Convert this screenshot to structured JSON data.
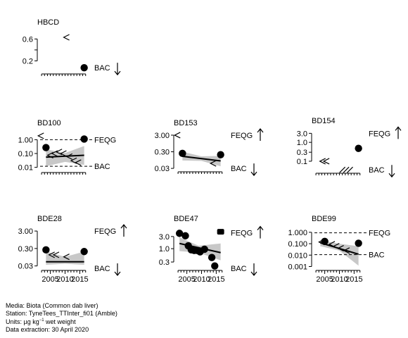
{
  "footer": {
    "media": "Media: Biota (Common dab liver)",
    "station": "Station: TyneTees_TTInter_fi01 (Amble)",
    "units_prefix": "Units:  µg kg",
    "units_sup": "−1",
    "units_suffix": " wet weight",
    "extraction": "Data extraction: 30 April 2020"
  },
  "chart_data": [
    {
      "type": "scatter",
      "title": "HBCD",
      "yscale": "linear",
      "ylim": [
        0,
        0.72
      ],
      "yticks": [
        0.2,
        0.4,
        0.6
      ],
      "ytick_labels": [
        "0.2",
        "",
        "0.6"
      ],
      "xlim": [
        2001.5,
        2018.5
      ],
      "points": [
        {
          "x": 2016.5,
          "y": 0.075,
          "type": "measured"
        }
      ],
      "less_than": [
        {
          "x": 2010.5,
          "y": 0.63
        }
      ],
      "refs": [
        {
          "label": "BAC",
          "y": 0.075,
          "arrow": "down"
        }
      ]
    },
    {
      "type": "scatter",
      "title": "BD100",
      "yscale": "log",
      "ylim": [
        0.006,
        3.0
      ],
      "yticks": [
        0.01,
        0.1,
        1.0
      ],
      "ytick_labels": [
        "0.01",
        "0.10",
        "1.00"
      ],
      "xlim": [
        2001.5,
        2018.5
      ],
      "points": [
        {
          "x": 2003.5,
          "y": 0.27,
          "type": "measured"
        },
        {
          "x": 2016.5,
          "y": 1.12,
          "type": "measured"
        }
      ],
      "less_than": [
        {
          "x": 2001.8,
          "y": 1.9
        },
        {
          "x": 2005,
          "y": 0.075
        },
        {
          "x": 2006.5,
          "y": 0.1
        },
        {
          "x": 2008,
          "y": 0.13
        },
        {
          "x": 2009.5,
          "y": 0.1
        },
        {
          "x": 2011.5,
          "y": 0.06
        },
        {
          "x": 2013,
          "y": 0.03
        },
        {
          "x": 2014.5,
          "y": 0.022
        }
      ],
      "trend": [
        {
          "x": 2003.5,
          "y": 0.055
        },
        {
          "x": 2016.5,
          "y": 0.075
        }
      ],
      "band": {
        "upper": [
          {
            "x": 2003.5,
            "y": 0.2
          },
          {
            "x": 2010,
            "y": 0.11
          },
          {
            "x": 2016.5,
            "y": 0.35
          }
        ],
        "lower": [
          {
            "x": 2003.5,
            "y": 0.012
          },
          {
            "x": 2010,
            "y": 0.025
          },
          {
            "x": 2016.5,
            "y": 0.015
          }
        ]
      },
      "refs": [
        {
          "label": "FEQG",
          "y": 1.0,
          "dashed": true
        },
        {
          "label": "BAC",
          "y": 0.012,
          "dashed": true
        }
      ]
    },
    {
      "type": "scatter",
      "title": "BD153",
      "yscale": "log",
      "ylim": [
        0.025,
        4.0
      ],
      "yticks": [
        0.03,
        0.3,
        3.0
      ],
      "ytick_labels": [
        "0.03",
        "0.30",
        "3.00"
      ],
      "xlim": [
        2001.5,
        2018.5
      ],
      "points": [
        {
          "x": 2003.5,
          "y": 0.24,
          "type": "measured"
        },
        {
          "x": 2016.5,
          "y": 0.2,
          "type": "measured"
        }
      ],
      "less_than": [
        {
          "x": 2001.8,
          "y": 3.0
        },
        {
          "x": 2014,
          "y": 0.06
        }
      ],
      "trend": [
        {
          "x": 2003.5,
          "y": 0.16
        },
        {
          "x": 2016.5,
          "y": 0.085
        }
      ],
      "band": {
        "upper": [
          {
            "x": 2003.5,
            "y": 0.3
          },
          {
            "x": 2010,
            "y": 0.16
          },
          {
            "x": 2016.5,
            "y": 0.17
          }
        ],
        "lower": [
          {
            "x": 2003.5,
            "y": 0.09
          },
          {
            "x": 2010,
            "y": 0.085
          },
          {
            "x": 2016.5,
            "y": 0.04
          }
        ]
      },
      "refs": [
        {
          "label": "FEQG",
          "y": 3.0,
          "arrow": "up"
        },
        {
          "label": "BAC",
          "y": 0.03,
          "arrow": "down"
        }
      ]
    },
    {
      "type": "scatter",
      "title": "BD154",
      "yscale": "log",
      "ylim": [
        0.03,
        4.0
      ],
      "yticks": [
        0.1,
        0.3,
        1.0,
        3.0
      ],
      "ytick_labels": [
        "0.1",
        "0.3",
        "1.0",
        "3.0"
      ],
      "xlim": [
        2001.5,
        2018.5
      ],
      "points": [
        {
          "x": 2016.5,
          "y": 0.48,
          "type": "measured"
        }
      ],
      "less_than": [
        {
          "x": 2004.3,
          "y": 0.1
        },
        {
          "x": 2005.6,
          "y": 0.1
        }
      ],
      "slashes": [
        {
          "x": 2011,
          "y": 0.035
        },
        {
          "x": 2012.3,
          "y": 0.035
        },
        {
          "x": 2013.6,
          "y": 0.035
        }
      ],
      "refs": [
        {
          "label": "FEQG",
          "y": 3.0,
          "arrow": "up"
        },
        {
          "label": "BAC",
          "y": 0.035,
          "arrow": "down"
        }
      ]
    },
    {
      "type": "scatter",
      "title": "BDE28",
      "yscale": "log",
      "ylim": [
        0.022,
        4.0
      ],
      "yticks": [
        0.03,
        0.3,
        3.0
      ],
      "ytick_labels": [
        "0.03",
        "0.30",
        "3.00"
      ],
      "xlim": [
        2001.5,
        2018.5
      ],
      "xticks": [
        2005,
        2010,
        2015
      ],
      "xtick_labels": [
        "2005",
        "2010",
        "2015"
      ],
      "points": [
        {
          "x": 2003.5,
          "y": 0.25,
          "type": "measured"
        },
        {
          "x": 2016.5,
          "y": 0.2,
          "type": "measured"
        }
      ],
      "less_than": [
        {
          "x": 2005.5,
          "y": 0.13
        },
        {
          "x": 2007,
          "y": 0.13
        },
        {
          "x": 2010.5,
          "y": 0.1
        }
      ],
      "trend": [
        {
          "x": 2003.5,
          "y": 0.052
        },
        {
          "x": 2016.5,
          "y": 0.052
        }
      ],
      "band": {
        "upper": [
          {
            "x": 2003.5,
            "y": 0.2
          },
          {
            "x": 2010,
            "y": 0.1
          },
          {
            "x": 2016.5,
            "y": 0.2
          }
        ],
        "lower": [
          {
            "x": 2003.5,
            "y": 0.035
          },
          {
            "x": 2010,
            "y": 0.04
          },
          {
            "x": 2016.5,
            "y": 0.035
          }
        ]
      },
      "refs": [
        {
          "label": "FEQG",
          "y": 3.0,
          "arrow": "up"
        },
        {
          "label": "BAC",
          "y": 0.022,
          "arrow": "down"
        }
      ]
    },
    {
      "type": "scatter",
      "title": "BDE47",
      "yscale": "log",
      "ylim": [
        0.17,
        6.0
      ],
      "yticks": [
        0.3,
        1.0,
        3.0
      ],
      "ytick_labels": [
        "0.3",
        "1.0",
        "3.0"
      ],
      "xlim": [
        2001.5,
        2018.5
      ],
      "xticks": [
        2005,
        2010,
        2015
      ],
      "xtick_labels": [
        "2005",
        "2010",
        "2015"
      ],
      "points": [
        {
          "x": 2002.5,
          "y": 4.0,
          "type": "measured"
        },
        {
          "x": 2004.5,
          "y": 3.2,
          "type": "measured"
        },
        {
          "x": 2005.5,
          "y": 1.3,
          "type": "measured"
        },
        {
          "x": 2006.5,
          "y": 0.9,
          "type": "measured"
        },
        {
          "x": 2007.5,
          "y": 0.85,
          "type": "measured"
        },
        {
          "x": 2008.5,
          "y": 0.85,
          "type": "measured"
        },
        {
          "x": 2009.5,
          "y": 0.75,
          "type": "measured"
        },
        {
          "x": 2011,
          "y": 0.95,
          "type": "measured"
        },
        {
          "x": 2013.5,
          "y": 0.45,
          "type": "measured"
        },
        {
          "x": 2014.5,
          "y": 0.21,
          "type": "measured"
        },
        {
          "x": 2016.5,
          "y": 4.6,
          "type": "other"
        }
      ],
      "trend": [
        {
          "x": 2002.5,
          "y": 1.6
        },
        {
          "x": 2016.5,
          "y": 0.7
        }
      ],
      "band": {
        "upper": [
          {
            "x": 2002.5,
            "y": 2.8
          },
          {
            "x": 2009,
            "y": 1.3
          },
          {
            "x": 2016.5,
            "y": 1.6
          }
        ],
        "lower": [
          {
            "x": 2002.5,
            "y": 0.8
          },
          {
            "x": 2009,
            "y": 0.7
          },
          {
            "x": 2016.5,
            "y": 0.35
          }
        ]
      },
      "refs": [
        {
          "label": "FEQG",
          "y": 4.2,
          "arrow": "up"
        },
        {
          "label": "BAC",
          "y": 0.17,
          "arrow": "down"
        }
      ]
    },
    {
      "type": "scatter",
      "title": "BDE99",
      "yscale": "log",
      "ylim": [
        0.0007,
        2.0
      ],
      "yticks": [
        0.001,
        0.01,
        0.1,
        1.0
      ],
      "ytick_labels": [
        "0.001",
        "0.010",
        "0.100",
        "1.000"
      ],
      "xlim": [
        2001.5,
        2018.5
      ],
      "xticks": [
        2005,
        2010,
        2015
      ],
      "xtick_labels": [
        "2005",
        "2010",
        "2015"
      ],
      "points": [
        {
          "x": 2005,
          "y": 0.16,
          "type": "measured"
        },
        {
          "x": 2016.5,
          "y": 0.11,
          "type": "measured"
        }
      ],
      "less_than": [
        {
          "x": 2004,
          "y": 0.14
        },
        {
          "x": 2007.5,
          "y": 0.09
        },
        {
          "x": 2009,
          "y": 0.06
        },
        {
          "x": 2010.5,
          "y": 0.04
        },
        {
          "x": 2012.5,
          "y": 0.025
        }
      ],
      "trend": [
        {
          "x": 2003.5,
          "y": 0.12
        },
        {
          "x": 2016.5,
          "y": 0.012
        }
      ],
      "band": {
        "upper": [
          {
            "x": 2003.5,
            "y": 0.2
          },
          {
            "x": 2010,
            "y": 0.1
          },
          {
            "x": 2016.5,
            "y": 0.06
          }
        ],
        "lower": [
          {
            "x": 2003.5,
            "y": 0.06
          },
          {
            "x": 2010,
            "y": 0.025
          },
          {
            "x": 2016.5,
            "y": 0.0012
          }
        ]
      },
      "refs": [
        {
          "label": "FEQG",
          "y": 0.9,
          "dashed": true
        },
        {
          "label": "BAC",
          "y": 0.011,
          "dashed": true
        }
      ]
    }
  ]
}
